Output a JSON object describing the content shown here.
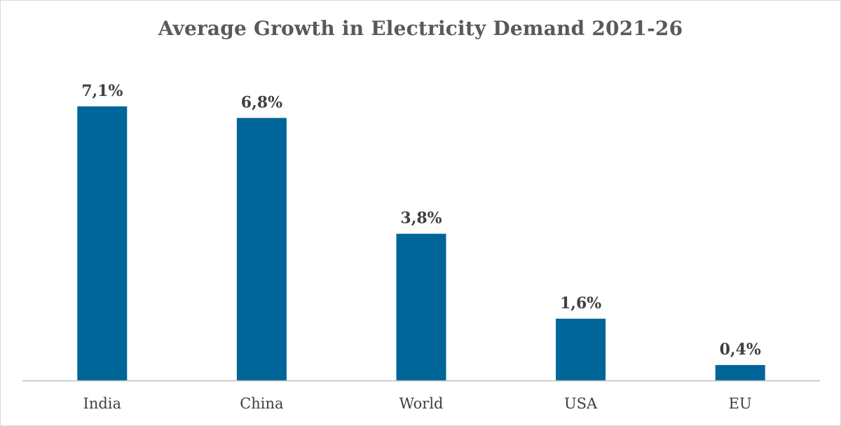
{
  "chart_data": {
    "type": "bar",
    "title": "Average Growth in Electricity Demand 2021-26",
    "xlabel": "",
    "ylabel": "",
    "categories": [
      "India",
      "China",
      "World",
      "USA",
      "EU"
    ],
    "values": [
      7.1,
      6.8,
      3.8,
      1.6,
      0.4
    ],
    "value_labels": [
      "7,1%",
      "6,8%",
      "3,8%",
      "1,6%",
      "0,4%"
    ],
    "unit": "%",
    "ylim": [
      0,
      7.5
    ],
    "grid": false,
    "legend": "none",
    "colors": {
      "bar": "#006699",
      "text": "#404040",
      "title": "#595959",
      "axis": "#bfbfbf"
    }
  }
}
